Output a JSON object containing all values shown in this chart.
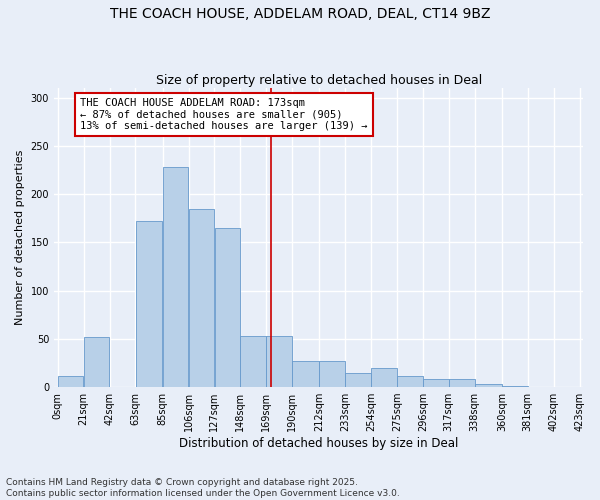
{
  "title": "THE COACH HOUSE, ADDELAM ROAD, DEAL, CT14 9BZ",
  "subtitle": "Size of property relative to detached houses in Deal",
  "xlabel": "Distribution of detached houses by size in Deal",
  "ylabel": "Number of detached properties",
  "bar_color": "#b8d0e8",
  "bar_edge_color": "#6699cc",
  "background_color": "#e8eef8",
  "grid_color": "#ffffff",
  "vline_value": 173,
  "vline_color": "#cc0000",
  "annotation_text": "THE COACH HOUSE ADDELAM ROAD: 173sqm\n← 87% of detached houses are smaller (905)\n13% of semi-detached houses are larger (139) →",
  "annotation_box_color": "#ffffff",
  "annotation_border_color": "#cc0000",
  "bins": [
    0,
    21,
    42,
    63,
    85,
    106,
    127,
    148,
    169,
    190,
    212,
    233,
    254,
    275,
    296,
    317,
    338,
    360,
    381,
    402,
    423
  ],
  "counts": [
    12,
    52,
    0,
    172,
    228,
    185,
    165,
    53,
    53,
    27,
    27,
    15,
    20,
    12,
    8,
    8,
    3,
    1,
    0,
    0
  ],
  "ylim": [
    0,
    310
  ],
  "yticks": [
    0,
    50,
    100,
    150,
    200,
    250,
    300
  ],
  "footnote": "Contains HM Land Registry data © Crown copyright and database right 2025.\nContains public sector information licensed under the Open Government Licence v3.0.",
  "footnote_fontsize": 6.5,
  "title_fontsize": 10,
  "subtitle_fontsize": 9,
  "ylabel_fontsize": 8,
  "xlabel_fontsize": 8.5,
  "tick_fontsize": 7,
  "annot_fontsize": 7.5
}
